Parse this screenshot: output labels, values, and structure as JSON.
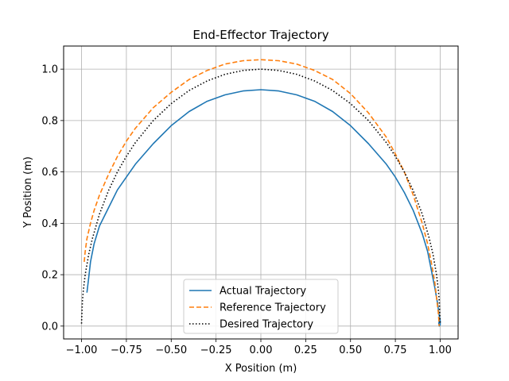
{
  "chart_data": {
    "type": "line",
    "title": "End-Effector Trajectory",
    "xlabel": "X Position (m)",
    "ylabel": "Y Position (m)",
    "xlim": [
      -1.1,
      1.1
    ],
    "ylim": [
      -0.05,
      1.09
    ],
    "xticks": [
      -1.0,
      -0.75,
      -0.5,
      -0.25,
      0.0,
      0.25,
      0.5,
      0.75,
      1.0
    ],
    "xtick_labels": [
      "−1.00",
      "−0.75",
      "−0.50",
      "−0.25",
      "0.00",
      "0.25",
      "0.50",
      "0.75",
      "1.00"
    ],
    "yticks": [
      0.0,
      0.2,
      0.4,
      0.6,
      0.8,
      1.0
    ],
    "ytick_labels": [
      "0.0",
      "0.2",
      "0.4",
      "0.6",
      "0.8",
      "1.0"
    ],
    "grid": true,
    "legend": "lower center",
    "series": [
      {
        "name": "Actual Trajectory",
        "color": "#1f77b4",
        "style": "solid",
        "x": [
          -0.97,
          -0.96,
          -0.95,
          -0.93,
          -0.9,
          -0.85,
          -0.8,
          -0.75,
          -0.7,
          -0.6,
          -0.5,
          -0.4,
          -0.3,
          -0.2,
          -0.1,
          0.0,
          0.1,
          0.2,
          0.3,
          0.4,
          0.5,
          0.6,
          0.7,
          0.75,
          0.8,
          0.85,
          0.9,
          0.93,
          0.95,
          0.97,
          0.985,
          0.995,
          1.0,
          1.0,
          0.995,
          0.992,
          0.995
        ],
        "y": [
          0.13,
          0.19,
          0.25,
          0.32,
          0.39,
          0.46,
          0.53,
          0.58,
          0.63,
          0.71,
          0.78,
          0.835,
          0.875,
          0.9,
          0.915,
          0.92,
          0.915,
          0.9,
          0.875,
          0.835,
          0.78,
          0.71,
          0.63,
          0.58,
          0.52,
          0.45,
          0.36,
          0.29,
          0.22,
          0.15,
          0.09,
          0.04,
          0.02,
          0.005,
          0.0,
          0.01,
          0.02
        ]
      },
      {
        "name": "Reference Trajectory",
        "color": "#ff7f0e",
        "style": "dashed",
        "x": [
          -0.985,
          -0.98,
          -0.97,
          -0.95,
          -0.93,
          -0.9,
          -0.85,
          -0.8,
          -0.75,
          -0.7,
          -0.6,
          -0.5,
          -0.4,
          -0.3,
          -0.2,
          -0.1,
          0.0,
          0.1,
          0.2,
          0.3,
          0.4,
          0.5,
          0.6,
          0.7,
          0.75,
          0.8,
          0.85,
          0.9,
          0.93,
          0.95,
          0.97,
          0.98,
          0.99,
          0.995
        ],
        "y": [
          0.25,
          0.29,
          0.34,
          0.4,
          0.45,
          0.51,
          0.59,
          0.66,
          0.72,
          0.77,
          0.85,
          0.91,
          0.96,
          0.995,
          1.02,
          1.033,
          1.037,
          1.033,
          1.02,
          0.995,
          0.96,
          0.905,
          0.83,
          0.735,
          0.67,
          0.6,
          0.51,
          0.4,
          0.32,
          0.25,
          0.17,
          0.11,
          0.05,
          0.0
        ]
      },
      {
        "name": "Desired Trajectory",
        "color": "#000000",
        "style": "dotted",
        "x": [
          -1.0,
          -0.995,
          -0.99,
          -0.98,
          -0.96,
          -0.94,
          -0.9,
          -0.85,
          -0.8,
          -0.75,
          -0.7,
          -0.6,
          -0.5,
          -0.4,
          -0.3,
          -0.2,
          -0.1,
          0.0,
          0.1,
          0.2,
          0.3,
          0.4,
          0.5,
          0.6,
          0.7,
          0.75,
          0.8,
          0.85,
          0.9,
          0.94,
          0.96,
          0.98,
          0.99,
          0.995,
          1.0
        ],
        "y": [
          0.01,
          0.1,
          0.14,
          0.2,
          0.28,
          0.34,
          0.436,
          0.527,
          0.6,
          0.661,
          0.714,
          0.8,
          0.866,
          0.917,
          0.954,
          0.98,
          0.995,
          1.0,
          0.995,
          0.98,
          0.954,
          0.917,
          0.866,
          0.8,
          0.714,
          0.661,
          0.6,
          0.527,
          0.436,
          0.34,
          0.28,
          0.2,
          0.14,
          0.1,
          0.01
        ]
      }
    ]
  }
}
